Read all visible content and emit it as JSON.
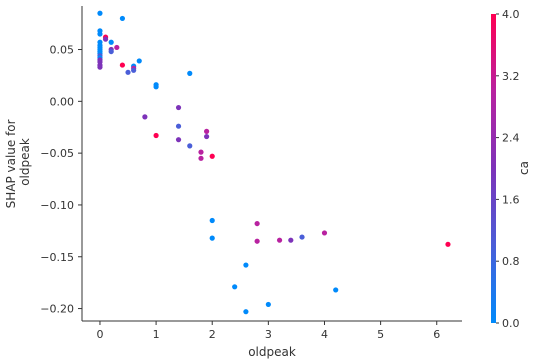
{
  "chart_data": {
    "type": "scatter",
    "title": "",
    "xlabel": "oldpeak",
    "ylabel": [
      "SHAP value for",
      "oldpeak"
    ],
    "xlim": [
      -0.32,
      6.45
    ],
    "ylim": [
      -0.212,
      0.092
    ],
    "x_ticks": [
      0,
      1,
      2,
      3,
      4,
      5,
      6
    ],
    "y_ticks": [
      0.05,
      0.0,
      -0.05,
      -0.1,
      -0.15,
      -0.2
    ],
    "y_tick_labels": [
      "0.05",
      "0.00",
      "−0.05",
      "−0.10",
      "−0.15",
      "−0.20"
    ],
    "grid": false,
    "colorbar": {
      "label": "ca",
      "min": 0.0,
      "max": 4.0,
      "ticks": [
        4.0,
        3.2,
        2.4,
        1.6,
        0.8,
        0.0
      ],
      "tick_labels": [
        "4.0",
        "3.2",
        "2.4",
        "1.6",
        "0.8",
        "0.0"
      ],
      "colors": [
        "#008afb",
        "#4a5ed8",
        "#7d33b9",
        "#b822a0",
        "#ff0052"
      ]
    },
    "points": [
      {
        "x": 0.0,
        "y": 0.085,
        "ca": 0
      },
      {
        "x": 0.0,
        "y": 0.068,
        "ca": 0
      },
      {
        "x": 0.0,
        "y": 0.065,
        "ca": 0
      },
      {
        "x": 0.0,
        "y": 0.057,
        "ca": 0
      },
      {
        "x": 0.0,
        "y": 0.054,
        "ca": 0
      },
      {
        "x": 0.0,
        "y": 0.052,
        "ca": 0
      },
      {
        "x": 0.0,
        "y": 0.05,
        "ca": 0
      },
      {
        "x": 0.0,
        "y": 0.048,
        "ca": 0
      },
      {
        "x": 0.0,
        "y": 0.046,
        "ca": 0
      },
      {
        "x": 0.0,
        "y": 0.044,
        "ca": 1
      },
      {
        "x": 0.0,
        "y": 0.042,
        "ca": 0
      },
      {
        "x": 0.0,
        "y": 0.04,
        "ca": 2
      },
      {
        "x": 0.0,
        "y": 0.038,
        "ca": 2
      },
      {
        "x": 0.0,
        "y": 0.035,
        "ca": 2
      },
      {
        "x": 0.0,
        "y": 0.033,
        "ca": 2
      },
      {
        "x": 0.1,
        "y": 0.062,
        "ca": 4
      },
      {
        "x": 0.1,
        "y": 0.06,
        "ca": 2
      },
      {
        "x": 0.2,
        "y": 0.057,
        "ca": 0
      },
      {
        "x": 0.2,
        "y": 0.05,
        "ca": 2
      },
      {
        "x": 0.2,
        "y": 0.048,
        "ca": 1
      },
      {
        "x": 0.3,
        "y": 0.052,
        "ca": 3
      },
      {
        "x": 0.4,
        "y": 0.08,
        "ca": 0
      },
      {
        "x": 0.4,
        "y": 0.035,
        "ca": 4
      },
      {
        "x": 0.5,
        "y": 0.028,
        "ca": 1
      },
      {
        "x": 0.6,
        "y": 0.034,
        "ca": 0
      },
      {
        "x": 0.6,
        "y": 0.032,
        "ca": 3
      },
      {
        "x": 0.6,
        "y": 0.03,
        "ca": 1
      },
      {
        "x": 0.7,
        "y": 0.039,
        "ca": 0
      },
      {
        "x": 0.8,
        "y": -0.015,
        "ca": 2
      },
      {
        "x": 1.0,
        "y": 0.016,
        "ca": 0
      },
      {
        "x": 1.0,
        "y": 0.014,
        "ca": 0
      },
      {
        "x": 1.0,
        "y": -0.033,
        "ca": 4
      },
      {
        "x": 1.4,
        "y": -0.006,
        "ca": 2
      },
      {
        "x": 1.4,
        "y": -0.024,
        "ca": 1
      },
      {
        "x": 1.4,
        "y": -0.037,
        "ca": 2
      },
      {
        "x": 1.6,
        "y": 0.027,
        "ca": 0
      },
      {
        "x": 1.6,
        "y": -0.043,
        "ca": 1
      },
      {
        "x": 1.8,
        "y": -0.049,
        "ca": 3
      },
      {
        "x": 1.8,
        "y": -0.055,
        "ca": 3
      },
      {
        "x": 1.9,
        "y": -0.029,
        "ca": 3
      },
      {
        "x": 1.9,
        "y": -0.034,
        "ca": 2
      },
      {
        "x": 2.0,
        "y": -0.053,
        "ca": 4
      },
      {
        "x": 2.0,
        "y": -0.115,
        "ca": 0
      },
      {
        "x": 2.0,
        "y": -0.132,
        "ca": 0
      },
      {
        "x": 2.4,
        "y": -0.179,
        "ca": 0
      },
      {
        "x": 2.6,
        "y": -0.158,
        "ca": 0
      },
      {
        "x": 2.6,
        "y": -0.203,
        "ca": 0
      },
      {
        "x": 2.8,
        "y": -0.118,
        "ca": 3
      },
      {
        "x": 2.8,
        "y": -0.135,
        "ca": 3
      },
      {
        "x": 3.0,
        "y": -0.196,
        "ca": 0
      },
      {
        "x": 3.2,
        "y": -0.134,
        "ca": 3
      },
      {
        "x": 3.4,
        "y": -0.134,
        "ca": 2
      },
      {
        "x": 3.6,
        "y": -0.131,
        "ca": 1
      },
      {
        "x": 4.0,
        "y": -0.127,
        "ca": 3
      },
      {
        "x": 4.2,
        "y": -0.182,
        "ca": 0
      },
      {
        "x": 6.2,
        "y": -0.138,
        "ca": 4
      }
    ]
  }
}
